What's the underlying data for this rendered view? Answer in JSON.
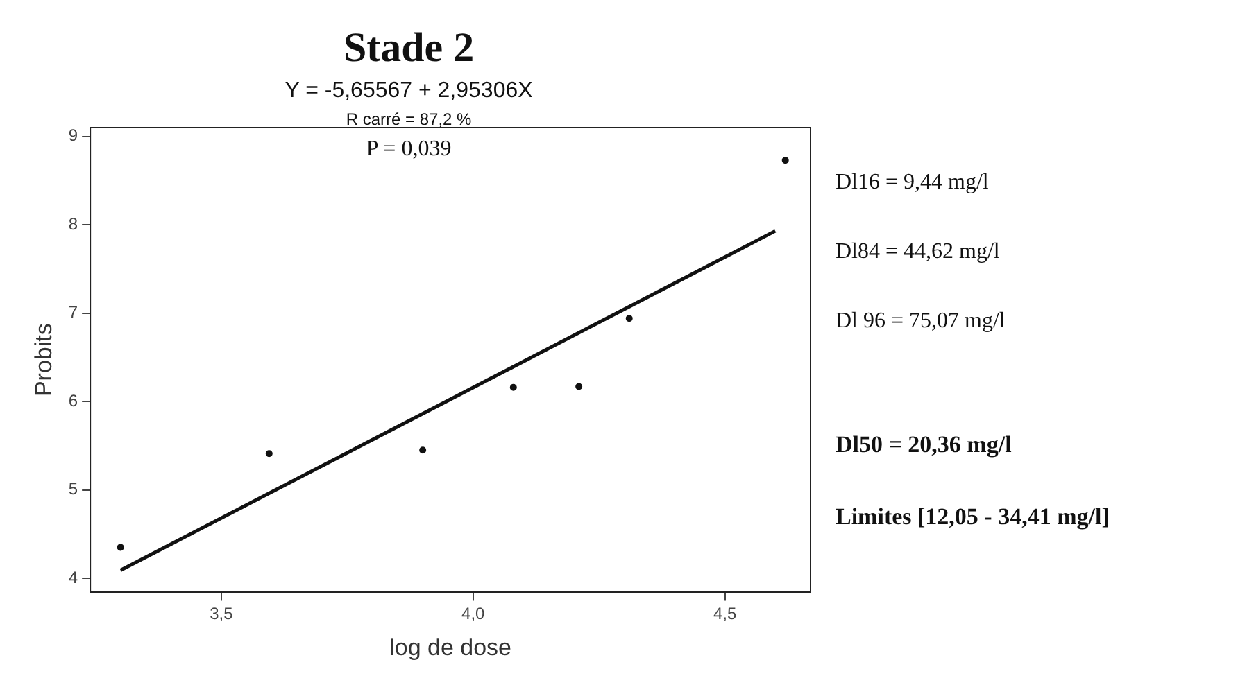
{
  "chart_data": {
    "type": "scatter",
    "title": "Stade 2",
    "subtitle": "Y = -5,65567 + 2,95306X",
    "xlabel": "log de dose",
    "ylabel": "Probits",
    "annotations": [
      "R carré = 87,2 %",
      "P = 0,039",
      "Dl16 = 9,44 mg/l",
      "Dl84 = 44,62 mg/l",
      "Dl 96 = 75,07 mg/l",
      "Dl50 = 20,36 mg/l",
      "Limites [12,05 - 34,41 mg/l]"
    ],
    "series": [
      {
        "color": "#111111",
        "marker": "circle",
        "x": [
          3.3,
          3.595,
          3.9,
          4.08,
          4.21,
          4.31,
          4.62
        ],
        "values": [
          4.35,
          5.41,
          5.45,
          6.16,
          6.17,
          6.94,
          8.73
        ]
      },
      {
        "type": "line",
        "color": "#111111",
        "marker": "none",
        "x": [
          3.3,
          4.6
        ],
        "values": [
          4.09,
          7.93
        ]
      }
    ],
    "xlim": [
      3.24,
      4.67
    ],
    "ylim": [
      3.84,
      9.1
    ],
    "xticks": [
      {
        "value": 3.5,
        "label": "3,5"
      },
      {
        "value": 4.0,
        "label": "4,0"
      },
      {
        "value": 4.5,
        "label": "4,5"
      }
    ],
    "yticks": [
      4,
      5,
      6,
      7,
      8,
      9
    ],
    "grid": false,
    "legend": false
  }
}
